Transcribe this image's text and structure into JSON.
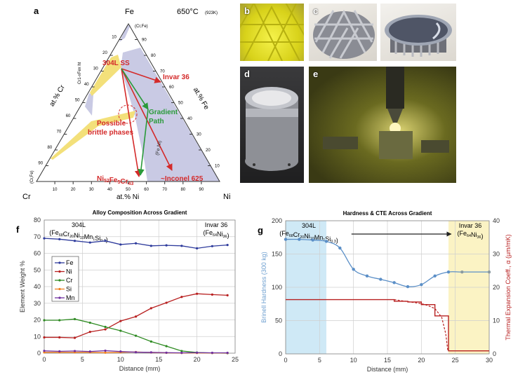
{
  "panel_a": {
    "label": "a",
    "vertex_top": "Fe",
    "vertex_left": "Cr",
    "vertex_right": "Ni",
    "temperature": "650°C",
    "temperature_k": "(923K)",
    "axis_left": "at.% Cr",
    "axis_right": "at.% Fe",
    "axis_bottom": "at.% Ni",
    "phase_top": "(Cr,Fe)",
    "phase_left": "(Cr,Fe)",
    "phase_fe_ni": "(Fe,Ni)",
    "phase_ht": "Cr1-xFex ht",
    "ticks_bottom": [
      "10",
      "20",
      "30",
      "40",
      "50",
      "60",
      "70",
      "80",
      "90"
    ],
    "ticks_left": [
      "10",
      "20",
      "30",
      "40",
      "50",
      "60",
      "70",
      "80",
      "90"
    ],
    "ticks_right": [
      "90",
      "80",
      "70",
      "60",
      "50",
      "40",
      "30",
      "20",
      "10"
    ],
    "label_304": "304L SS",
    "label_invar": "Invar 36",
    "label_gradient_1": "Gradient",
    "label_gradient_2": "Path",
    "label_brittle_1": "Possible",
    "label_brittle_2": "brittle phases",
    "label_ni52": [
      [
        "Ni",
        "52"
      ],
      [
        "Fe",
        "5"
      ],
      [
        "Cr",
        "43"
      ]
    ],
    "label_inconel": "~Inconel 625",
    "colors": {
      "red": "#d42a2a",
      "green": "#2a9a3a",
      "lavender": "#c9cae4",
      "yellow": "#f3e07a"
    }
  },
  "photos": {
    "b": {
      "label": "b"
    },
    "c": {
      "label": "c"
    },
    "d": {
      "label": "d"
    },
    "e": {
      "label": "e"
    }
  },
  "chart_data": [
    {
      "panel": "f",
      "type": "line",
      "title": "Alloy Composition Across Gradient",
      "xlabel": "Distance (mm)",
      "ylabel": "Element Weight %",
      "xlim": [
        0,
        25
      ],
      "ylim": [
        0,
        80
      ],
      "xticks": [
        "0",
        "5",
        "10",
        "15",
        "20",
        "25"
      ],
      "yticks": [
        "0",
        "10",
        "20",
        "30",
        "40",
        "50",
        "60",
        "70",
        "80"
      ],
      "grid": true,
      "legend": "left",
      "annotation_left_name": "304L",
      "annotation_left_formula": [
        [
          "Fe",
          "68"
        ],
        [
          "Cr",
          "20"
        ],
        [
          "Ni",
          "10"
        ],
        [
          "Mn",
          "1"
        ],
        [
          "Si",
          "0.3"
        ]
      ],
      "annotation_right_name": "Invar 36",
      "annotation_right_formula": [
        [
          "Fe",
          "64"
        ],
        [
          "Ni",
          "36"
        ]
      ],
      "x": [
        0,
        2,
        4,
        6,
        8,
        10,
        12,
        14,
        16,
        18,
        20,
        22,
        24
      ],
      "series": [
        {
          "name": "Fe",
          "color": "#2e3b9c",
          "values": [
            69,
            68.5,
            67.5,
            66.5,
            67.5,
            65.3,
            66,
            64.5,
            64.8,
            64.5,
            63,
            64.3,
            65
          ]
        },
        {
          "name": "Ni",
          "color": "#b82020",
          "values": [
            9.5,
            9.5,
            9.2,
            12.8,
            14.3,
            19.3,
            22,
            27,
            30.3,
            33.8,
            35.7,
            35.2,
            34.8
          ]
        },
        {
          "name": "Cr",
          "color": "#2e8b22",
          "values": [
            19.8,
            19.8,
            20.5,
            18.3,
            15.8,
            13.5,
            10.5,
            7,
            4.2,
            1.3,
            0.4,
            0.1,
            0
          ]
        },
        {
          "name": "Si",
          "color": "#f08020",
          "values": [
            0.5,
            0.5,
            0.5,
            0.5,
            0.3,
            0.5,
            0.7,
            0.4,
            0.2,
            0.1,
            0.1,
            0.1,
            0.1
          ]
        },
        {
          "name": "Mn",
          "color": "#7030a0",
          "values": [
            1.4,
            1.1,
            1.3,
            1.0,
            1.5,
            1.0,
            0.6,
            0.5,
            0.3,
            0.2,
            0.3,
            0.2,
            0.2
          ]
        }
      ]
    },
    {
      "panel": "g",
      "type": "line",
      "title": "Hardness & CTE Across Gradient",
      "xlabel": "Distance (mm)",
      "ylabel": "Brinell Hardness (300 kg)",
      "ylabel_right": "Thermal Expansion Coeff., α (µm/mK)",
      "xlim": [
        0,
        30
      ],
      "ylim": [
        0,
        200
      ],
      "ylim_right": [
        0,
        40
      ],
      "xticks": [
        "0",
        "5",
        "10",
        "15",
        "20",
        "25",
        "30"
      ],
      "yticks": [
        "0",
        "50",
        "100",
        "150",
        "200"
      ],
      "yticks_right": [
        "0",
        "10",
        "20",
        "30",
        "40"
      ],
      "grid": true,
      "annotation_left_name": "304L",
      "annotation_left_formula": [
        [
          "Fe",
          "68"
        ],
        [
          "Cr",
          "20"
        ],
        [
          "Ni",
          "10"
        ],
        [
          "Mn",
          "1"
        ],
        [
          "Si",
          "0.3"
        ]
      ],
      "annotation_right_name": "Invar 36",
      "annotation_right_formula": [
        [
          "Fe",
          "64"
        ],
        [
          "Ni",
          "36"
        ]
      ],
      "regions": [
        {
          "from": 0,
          "to": 6,
          "color": "#cfe9f6"
        },
        {
          "from": 24,
          "to": 30,
          "color": "#fbf3c4"
        }
      ],
      "hardness": {
        "color": "#5b8fc7",
        "x": [
          0,
          2,
          4,
          6,
          8,
          10,
          12,
          14,
          16,
          18,
          20,
          22,
          24,
          26,
          30
        ],
        "values": [
          172,
          172,
          171,
          169,
          159,
          127,
          117,
          112,
          107,
          101,
          104,
          117,
          123,
          123,
          123
        ]
      },
      "cte_measured": {
        "color": "#b82020",
        "x": [
          0,
          16,
          16,
          18,
          18,
          20,
          20,
          22,
          22,
          24,
          24,
          30
        ],
        "values": [
          16.3,
          16.3,
          15.8,
          15.8,
          15.6,
          15.6,
          14.8,
          14.8,
          11.4,
          11.4,
          0.9,
          0.9
        ]
      },
      "cte_predicted": {
        "color": "#b82020",
        "x": [
          16,
          18,
          20,
          21,
          22,
          23,
          23.6,
          23.9
        ],
        "values": [
          16.3,
          15.7,
          15.1,
          14.5,
          13.6,
          11,
          6,
          1
        ]
      }
    }
  ]
}
